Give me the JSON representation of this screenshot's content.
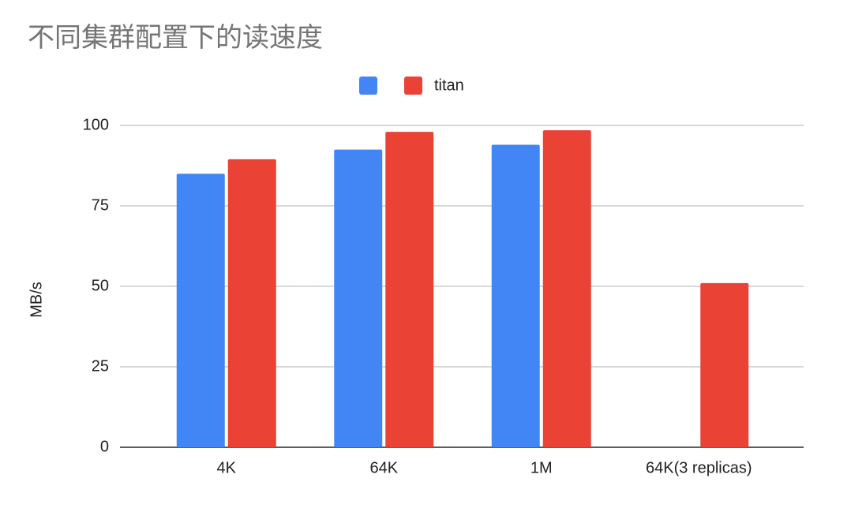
{
  "chart_data": {
    "type": "bar",
    "title": "不同集群配置下的读速度",
    "y_label": "MB/s",
    "categories": [
      "4K",
      "64K",
      "1M",
      "64K(3 replicas)"
    ],
    "series": [
      {
        "name": null,
        "color": "#4285f4",
        "values": [
          85,
          92.5,
          94,
          null
        ]
      },
      {
        "name": "titan",
        "color": "#ea4335",
        "values": [
          89.5,
          98,
          98.5,
          51
        ]
      }
    ],
    "ylim": [
      0,
      100
    ],
    "yticks": [
      0,
      25,
      50,
      75,
      100
    ],
    "grid": true
  }
}
